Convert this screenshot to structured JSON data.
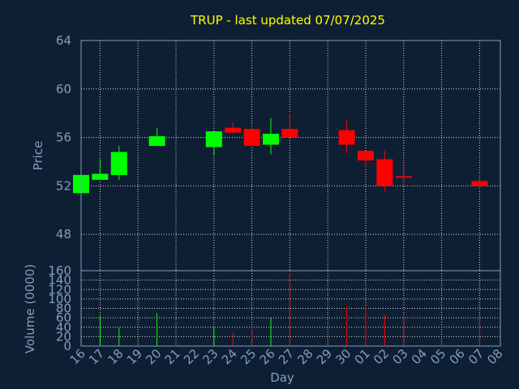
{
  "chart_data": [
    {
      "type": "candlestick",
      "title": "TRUP - last updated 07/07/2025",
      "ylabel": "Price",
      "ylim": [
        45,
        64
      ],
      "yticks": [
        48,
        52,
        56,
        60,
        64
      ],
      "x": [
        "16",
        "17",
        "18",
        "19",
        "20",
        "21",
        "22",
        "23",
        "24",
        "25",
        "26",
        "27",
        "28",
        "29",
        "30",
        "01",
        "02",
        "03",
        "04",
        "05",
        "06",
        "07",
        "08"
      ],
      "candles": [
        {
          "x": "16",
          "open": 51.4,
          "close": 52.9,
          "high": 52.9,
          "low": 51.3
        },
        {
          "x": "17",
          "open": 52.5,
          "close": 53.0,
          "high": 54.2,
          "low": 52.5
        },
        {
          "x": "18",
          "open": 52.9,
          "close": 54.8,
          "high": 55.3,
          "low": 52.5
        },
        {
          "x": "20",
          "open": 55.3,
          "close": 56.1,
          "high": 56.8,
          "low": 55.3
        },
        {
          "x": "23",
          "open": 55.2,
          "close": 56.5,
          "high": 56.5,
          "low": 54.5
        },
        {
          "x": "24",
          "open": 56.8,
          "close": 56.4,
          "high": 57.3,
          "low": 56.3
        },
        {
          "x": "25",
          "open": 56.7,
          "close": 55.3,
          "high": 56.8,
          "low": 55.3
        },
        {
          "x": "26",
          "open": 55.4,
          "close": 56.3,
          "high": 57.6,
          "low": 54.6
        },
        {
          "x": "27",
          "open": 56.7,
          "close": 56.0,
          "high": 58.0,
          "low": 56.0
        },
        {
          "x": "30",
          "open": 56.6,
          "close": 55.4,
          "high": 57.4,
          "low": 54.7
        },
        {
          "x": "01",
          "open": 54.9,
          "close": 54.1,
          "high": 54.9,
          "low": 53.5
        },
        {
          "x": "02",
          "open": 54.2,
          "close": 52.0,
          "high": 54.9,
          "low": 51.5
        },
        {
          "x": "03",
          "open": 52.8,
          "close": 52.7,
          "high": 53.8,
          "low": 52.0
        },
        {
          "x": "07",
          "open": 52.4,
          "close": 52.0,
          "high": 53.0,
          "low": 51.7
        }
      ],
      "colors": {
        "up": "#00ff00",
        "down": "#ff0000"
      },
      "grid": true
    },
    {
      "type": "bar",
      "ylabel": "Volume (0000)",
      "xlabel": "Day",
      "ylim": [
        0,
        160
      ],
      "yticks": [
        0,
        20,
        40,
        60,
        80,
        100,
        120,
        140,
        160
      ],
      "x": [
        "16",
        "17",
        "18",
        "19",
        "20",
        "21",
        "22",
        "23",
        "24",
        "25",
        "26",
        "27",
        "28",
        "29",
        "30",
        "01",
        "02",
        "03",
        "04",
        "05",
        "06",
        "07",
        "08"
      ],
      "tick_labels": [
        "16",
        "17",
        "18",
        "19",
        "20",
        "21",
        "22",
        "23",
        "24",
        "25",
        "26",
        "27",
        "28",
        "29",
        "30",
        "01",
        "02",
        "03",
        "04",
        "05",
        "06",
        "07",
        "08"
      ],
      "bars": [
        {
          "x": "17",
          "value": 64,
          "dir": "up"
        },
        {
          "x": "18",
          "value": 40,
          "dir": "up"
        },
        {
          "x": "20",
          "value": 70,
          "dir": "up"
        },
        {
          "x": "23",
          "value": 38,
          "dir": "up"
        },
        {
          "x": "24",
          "value": 28,
          "dir": "down"
        },
        {
          "x": "25",
          "value": 36,
          "dir": "down"
        },
        {
          "x": "26",
          "value": 60,
          "dir": "up"
        },
        {
          "x": "27",
          "value": 155,
          "dir": "down"
        },
        {
          "x": "30",
          "value": 84,
          "dir": "down"
        },
        {
          "x": "01",
          "value": 84,
          "dir": "down"
        },
        {
          "x": "02",
          "value": 66,
          "dir": "down"
        },
        {
          "x": "03",
          "value": 62,
          "dir": "down"
        },
        {
          "x": "07",
          "value": 64,
          "dir": "down"
        }
      ],
      "grid": true
    }
  ]
}
